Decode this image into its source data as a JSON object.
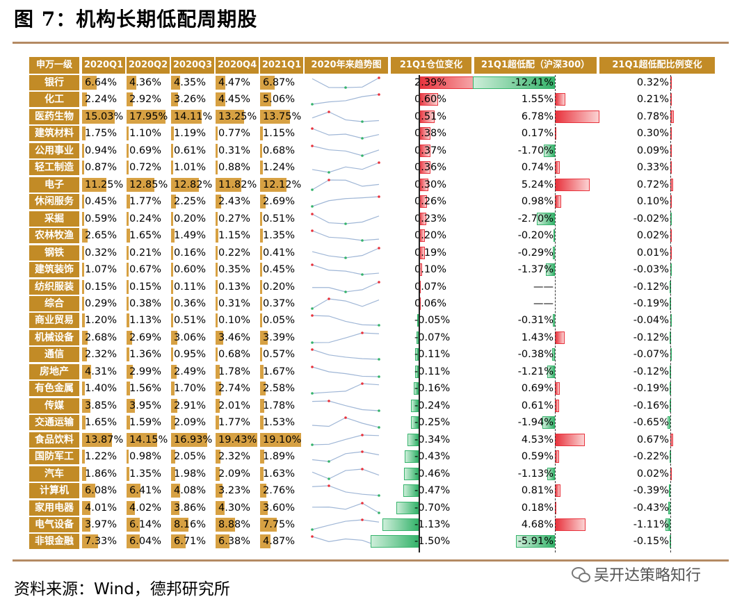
{
  "title": "图 7：机构长期低配周期股",
  "source": "资料来源：Wind，德邦研究所",
  "watermark": "吴开达策略知行",
  "colors": {
    "header_bg": "#c28b26",
    "bar": "#d7a143",
    "pos": "#e8323c",
    "neg": "#35b36b"
  },
  "headers": [
    "申万一级",
    "2020Q1",
    "2020Q2",
    "2020Q3",
    "2020Q4",
    "2021Q1",
    "2020年来趋势图",
    "21Q1仓位变化",
    "21Q1超低配（沪深300）",
    "21Q1超低配比例变化"
  ],
  "rows": [
    {
      "name": "银行",
      "q": [
        "6.64%",
        "4.36%",
        "4.35%",
        "4.47%",
        "6.87%"
      ],
      "qv": [
        6.64,
        4.36,
        4.35,
        4.47,
        6.87
      ],
      "chg": "2.39%",
      "chgv": 2.39,
      "ow": "-12.41%",
      "owv": -12.41,
      "owc": "0.32%",
      "owcv": 0.32
    },
    {
      "name": "化工",
      "q": [
        "2.24%",
        "2.92%",
        "3.26%",
        "4.45%",
        "5.06%"
      ],
      "qv": [
        2.24,
        2.92,
        3.26,
        4.45,
        5.06
      ],
      "chg": "0.60%",
      "chgv": 0.6,
      "ow": "1.55%",
      "owv": 1.55,
      "owc": "0.21%",
      "owcv": 0.21
    },
    {
      "name": "医药生物",
      "q": [
        "15.03%",
        "17.95%",
        "14.11%",
        "13.25%",
        "13.75%"
      ],
      "qv": [
        15.03,
        17.95,
        14.11,
        13.25,
        13.75
      ],
      "chg": "0.51%",
      "chgv": 0.51,
      "ow": "6.78%",
      "owv": 6.78,
      "owc": "0.78%",
      "owcv": 0.78
    },
    {
      "name": "建筑材料",
      "q": [
        "1.75%",
        "1.10%",
        "1.19%",
        "0.77%",
        "1.15%"
      ],
      "qv": [
        1.75,
        1.1,
        1.19,
        0.77,
        1.15
      ],
      "chg": "0.38%",
      "chgv": 0.38,
      "ow": "0.17%",
      "owv": 0.17,
      "owc": "0.30%",
      "owcv": 0.3
    },
    {
      "name": "公用事业",
      "q": [
        "0.94%",
        "0.69%",
        "0.61%",
        "0.31%",
        "0.68%"
      ],
      "qv": [
        0.94,
        0.69,
        0.61,
        0.31,
        0.68
      ],
      "chg": "0.37%",
      "chgv": 0.37,
      "ow": "-1.70%",
      "owv": -1.7,
      "owc": "0.09%",
      "owcv": 0.09
    },
    {
      "name": "轻工制造",
      "q": [
        "0.87%",
        "0.72%",
        "1.01%",
        "0.88%",
        "1.24%"
      ],
      "qv": [
        0.87,
        0.72,
        1.01,
        0.88,
        1.24
      ],
      "chg": "0.36%",
      "chgv": 0.36,
      "ow": "0.74%",
      "owv": 0.74,
      "owc": "0.33%",
      "owcv": 0.33
    },
    {
      "name": "电子",
      "q": [
        "11.25%",
        "12.85%",
        "12.82%",
        "11.82%",
        "12.12%"
      ],
      "qv": [
        11.25,
        12.85,
        12.82,
        11.82,
        12.12
      ],
      "chg": "0.30%",
      "chgv": 0.3,
      "ow": "5.24%",
      "owv": 5.24,
      "owc": "0.72%",
      "owcv": 0.72
    },
    {
      "name": "休闲服务",
      "q": [
        "0.45%",
        "1.77%",
        "2.25%",
        "2.43%",
        "2.69%"
      ],
      "qv": [
        0.45,
        1.77,
        2.25,
        2.43,
        2.69
      ],
      "chg": "0.26%",
      "chgv": 0.26,
      "ow": "0.98%",
      "owv": 0.98,
      "owc": "0.10%",
      "owcv": 0.1
    },
    {
      "name": "采掘",
      "q": [
        "0.59%",
        "0.24%",
        "0.20%",
        "0.27%",
        "0.51%"
      ],
      "qv": [
        0.59,
        0.24,
        0.2,
        0.27,
        0.51
      ],
      "chg": "0.23%",
      "chgv": 0.23,
      "ow": "-2.70%",
      "owv": -2.7,
      "owc": "-0.02%",
      "owcv": -0.02
    },
    {
      "name": "农林牧渔",
      "q": [
        "2.65%",
        "1.65%",
        "1.49%",
        "1.15%",
        "1.35%"
      ],
      "qv": [
        2.65,
        1.65,
        1.49,
        1.15,
        1.35
      ],
      "chg": "0.20%",
      "chgv": 0.2,
      "ow": "-0.20%",
      "owv": -0.2,
      "owc": "0.02%",
      "owcv": 0.02
    },
    {
      "name": "钢铁",
      "q": [
        "0.32%",
        "0.21%",
        "0.16%",
        "0.22%",
        "0.41%"
      ],
      "qv": [
        0.32,
        0.21,
        0.16,
        0.22,
        0.41
      ],
      "chg": "0.19%",
      "chgv": 0.19,
      "ow": "-0.29%",
      "owv": -0.29,
      "owc": "0.01%",
      "owcv": 0.01
    },
    {
      "name": "建筑装饰",
      "q": [
        "1.07%",
        "0.67%",
        "0.60%",
        "0.35%",
        "0.45%"
      ],
      "qv": [
        1.07,
        0.67,
        0.6,
        0.35,
        0.45
      ],
      "chg": "0.10%",
      "chgv": 0.1,
      "ow": "-1.37%",
      "owv": -1.37,
      "owc": "-0.03%",
      "owcv": -0.03
    },
    {
      "name": "纺织服装",
      "q": [
        "0.15%",
        "0.15%",
        "0.11%",
        "0.13%",
        "0.20%"
      ],
      "qv": [
        0.15,
        0.15,
        0.11,
        0.13,
        0.2
      ],
      "chg": "0.07%",
      "chgv": 0.07,
      "ow": "——",
      "owv": 0,
      "owc": "-0.12%",
      "owcv": -0.12
    },
    {
      "name": "综合",
      "q": [
        "0.29%",
        "0.38%",
        "0.36%",
        "0.31%",
        "0.37%"
      ],
      "qv": [
        0.29,
        0.38,
        0.36,
        0.31,
        0.37
      ],
      "chg": "0.06%",
      "chgv": 0.06,
      "ow": "——",
      "owv": 0,
      "owc": "-0.19%",
      "owcv": -0.19
    },
    {
      "name": "商业贸易",
      "q": [
        "1.20%",
        "1.13%",
        "0.51%",
        "0.10%",
        "0.05%"
      ],
      "qv": [
        1.2,
        1.13,
        0.51,
        0.1,
        0.05
      ],
      "chg": "-0.05%",
      "chgv": -0.05,
      "ow": "-0.31%",
      "owv": -0.31,
      "owc": "-0.04%",
      "owcv": -0.04
    },
    {
      "name": "机械设备",
      "q": [
        "2.68%",
        "2.69%",
        "3.06%",
        "3.46%",
        "3.39%"
      ],
      "qv": [
        2.68,
        2.69,
        3.06,
        3.46,
        3.39
      ],
      "chg": "-0.07%",
      "chgv": -0.07,
      "ow": "1.43%",
      "owv": 1.43,
      "owc": "-0.12%",
      "owcv": -0.12
    },
    {
      "name": "通信",
      "q": [
        "2.32%",
        "1.36%",
        "0.95%",
        "0.68%",
        "0.57%"
      ],
      "qv": [
        2.32,
        1.36,
        0.95,
        0.68,
        0.57
      ],
      "chg": "-0.11%",
      "chgv": -0.11,
      "ow": "-0.38%",
      "owv": -0.38,
      "owc": "-0.07%",
      "owcv": -0.07
    },
    {
      "name": "房地产",
      "q": [
        "4.31%",
        "2.99%",
        "2.49%",
        "1.78%",
        "1.67%"
      ],
      "qv": [
        4.31,
        2.99,
        2.49,
        1.78,
        1.67
      ],
      "chg": "-0.11%",
      "chgv": -0.11,
      "ow": "-1.21%",
      "owv": -1.21,
      "owc": "-0.12%",
      "owcv": -0.12
    },
    {
      "name": "有色金属",
      "q": [
        "1.40%",
        "1.56%",
        "1.70%",
        "2.74%",
        "2.58%"
      ],
      "qv": [
        1.4,
        1.56,
        1.7,
        2.74,
        2.58
      ],
      "chg": "-0.16%",
      "chgv": -0.16,
      "ow": "0.69%",
      "owv": 0.69,
      "owc": "-0.19%",
      "owcv": -0.19
    },
    {
      "name": "传媒",
      "q": [
        "3.85%",
        "3.95%",
        "2.91%",
        "2.01%",
        "1.78%"
      ],
      "qv": [
        3.85,
        3.95,
        2.91,
        2.01,
        1.78
      ],
      "chg": "-0.24%",
      "chgv": -0.24,
      "ow": "0.61%",
      "owv": 0.61,
      "owc": "-0.16%",
      "owcv": -0.16
    },
    {
      "name": "交通运输",
      "q": [
        "1.65%",
        "1.59%",
        "2.09%",
        "1.77%",
        "1.53%"
      ],
      "qv": [
        1.65,
        1.59,
        2.09,
        1.77,
        1.53
      ],
      "chg": "-0.25%",
      "chgv": -0.25,
      "ow": "-1.94%",
      "owv": -1.94,
      "owc": "-0.65%",
      "owcv": -0.65
    },
    {
      "name": "食品饮料",
      "q": [
        "13.87%",
        "14.15%",
        "16.93%",
        "19.43%",
        "19.10%"
      ],
      "qv": [
        13.87,
        14.15,
        16.93,
        19.43,
        19.1
      ],
      "chg": "-0.34%",
      "chgv": -0.34,
      "ow": "4.53%",
      "owv": 4.53,
      "owc": "0.67%",
      "owcv": 0.67
    },
    {
      "name": "国防军工",
      "q": [
        "1.22%",
        "0.98%",
        "2.05%",
        "2.32%",
        "1.89%"
      ],
      "qv": [
        1.22,
        0.98,
        2.05,
        2.32,
        1.89
      ],
      "chg": "-0.43%",
      "chgv": -0.43,
      "ow": "0.59%",
      "owv": 0.59,
      "owc": "-0.22%",
      "owcv": -0.22
    },
    {
      "name": "汽车",
      "q": [
        "1.86%",
        "1.35%",
        "1.98%",
        "2.09%",
        "1.63%"
      ],
      "qv": [
        1.86,
        1.35,
        1.98,
        2.09,
        1.63
      ],
      "chg": "-0.46%",
      "chgv": -0.46,
      "ow": "-1.13%",
      "owv": -1.13,
      "owc": "0.02%",
      "owcv": 0.02
    },
    {
      "name": "计算机",
      "q": [
        "6.08%",
        "6.41%",
        "4.08%",
        "3.23%",
        "2.76%"
      ],
      "qv": [
        6.08,
        6.41,
        4.08,
        3.23,
        2.76
      ],
      "chg": "-0.47%",
      "chgv": -0.47,
      "ow": "0.81%",
      "owv": 0.81,
      "owc": "-0.39%",
      "owcv": -0.39
    },
    {
      "name": "家用电器",
      "q": [
        "4.01%",
        "4.02%",
        "3.86%",
        "4.30%",
        "3.60%"
      ],
      "qv": [
        4.01,
        4.02,
        3.86,
        4.3,
        3.6
      ],
      "chg": "-0.70%",
      "chgv": -0.7,
      "ow": "0.18%",
      "owv": 0.18,
      "owc": "-0.43%",
      "owcv": -0.43
    },
    {
      "name": "电气设备",
      "q": [
        "3.97%",
        "6.14%",
        "8.16%",
        "8.88%",
        "7.75%"
      ],
      "qv": [
        3.97,
        6.14,
        8.16,
        8.88,
        7.75
      ],
      "chg": "-1.13%",
      "chgv": -1.13,
      "ow": "4.68%",
      "owv": 4.68,
      "owc": "-1.11%",
      "owcv": -1.11
    },
    {
      "name": "非银金融",
      "q": [
        "7.33%",
        "6.04%",
        "6.71%",
        "6.38%",
        "4.87%"
      ],
      "qv": [
        7.33,
        6.04,
        6.71,
        6.38,
        4.87
      ],
      "chg": "-1.50%",
      "chgv": -1.5,
      "ow": "-5.91%",
      "owv": -5.91,
      "owc": "-0.15%",
      "owcv": -0.15
    }
  ]
}
